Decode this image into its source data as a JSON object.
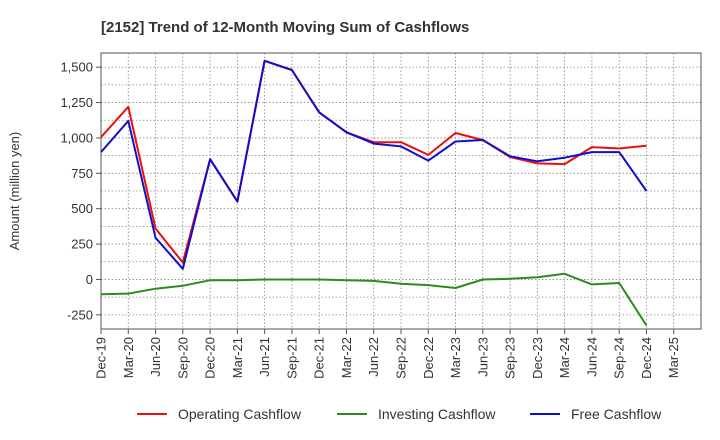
{
  "chart_data": {
    "type": "line",
    "title": "[2152]  Trend of 12-Month Moving Sum of Cashflows",
    "ylabel": "Amount (million yen)",
    "xlabel": "",
    "categories": [
      "Dec-19",
      "Mar-20",
      "Jun-20",
      "Sep-20",
      "Dec-20",
      "Mar-21",
      "Jun-21",
      "Sep-21",
      "Dec-21",
      "Mar-22",
      "Jun-22",
      "Sep-22",
      "Dec-22",
      "Mar-23",
      "Jun-23",
      "Sep-23",
      "Dec-23",
      "Mar-24",
      "Jun-24",
      "Sep-24",
      "Dec-24",
      "Mar-25"
    ],
    "yticks": [
      -250,
      0,
      250,
      500,
      750,
      1000,
      1250,
      1500
    ],
    "ytick_labels": [
      "-250",
      "0",
      "250",
      "500",
      "750",
      "1,000",
      "1,250",
      "1,500"
    ],
    "ylim": [
      -350,
      1600
    ],
    "grid": true,
    "legend_position": "bottom",
    "series": [
      {
        "name": "Operating Cashflow",
        "color": "#e8100f",
        "values": [
          1005,
          1220,
          360,
          120,
          850,
          550,
          1545,
          1480,
          1180,
          1040,
          970,
          970,
          880,
          1035,
          985,
          865,
          820,
          815,
          935,
          925,
          945,
          null
        ]
      },
      {
        "name": "Investing Cashflow",
        "color": "#2e8b1e",
        "values": [
          -105,
          -100,
          -65,
          -45,
          -5,
          -5,
          0,
          0,
          0,
          -5,
          -10,
          -30,
          -40,
          -60,
          0,
          5,
          15,
          40,
          -35,
          -25,
          -325,
          null
        ]
      },
      {
        "name": "Free Cashflow",
        "color": "#1010c8",
        "values": [
          900,
          1120,
          295,
          75,
          850,
          550,
          1545,
          1480,
          1180,
          1040,
          960,
          940,
          840,
          975,
          985,
          870,
          835,
          860,
          900,
          900,
          625,
          null
        ]
      }
    ]
  }
}
